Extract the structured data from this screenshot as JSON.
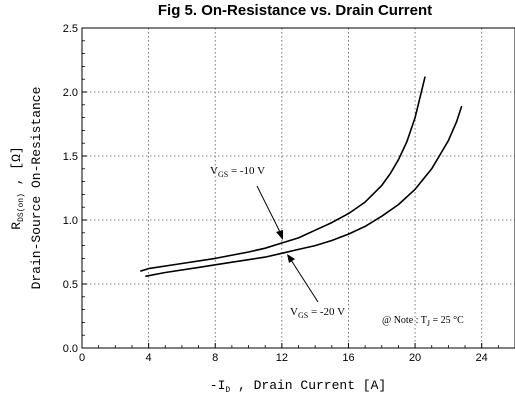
{
  "chart_data": {
    "type": "line",
    "title": "Fig 5. On-Resistance vs. Drain Current",
    "xlabel": {
      "prefix": "-I",
      "sub": "D",
      "rest": " , Drain Current  [A]"
    },
    "ylabel": {
      "line1_prefix": "R",
      "line1_sub": "DS(on)",
      "line1_rest": " ,  [Ω]",
      "line2": "Drain-Source On-Resistance"
    },
    "xlim": [
      0,
      26
    ],
    "ylim": [
      0,
      2.5
    ],
    "x_ticks": [
      "0",
      "4",
      "8",
      "12",
      "16",
      "20",
      "24"
    ],
    "y_ticks": [
      "0.0",
      "0.5",
      "1.0",
      "1.5",
      "2.0",
      "2.5"
    ],
    "grid": true,
    "series": [
      {
        "name": "VGS = -10 V",
        "x": [
          3.5,
          4,
          6,
          8,
          10,
          11,
          12,
          13,
          14,
          15,
          16,
          17,
          18,
          18.5,
          19,
          19.5,
          20,
          20.3,
          20.6
        ],
        "y": [
          0.6,
          0.62,
          0.66,
          0.7,
          0.75,
          0.78,
          0.82,
          0.86,
          0.92,
          0.98,
          1.05,
          1.14,
          1.27,
          1.36,
          1.47,
          1.61,
          1.8,
          1.96,
          2.12
        ]
      },
      {
        "name": "VGS = -20 V",
        "x": [
          3.8,
          5,
          7,
          9,
          11,
          12,
          13,
          14,
          15,
          16,
          17,
          18,
          19,
          20,
          21,
          22,
          22.5,
          22.8
        ],
        "y": [
          0.56,
          0.59,
          0.63,
          0.67,
          0.71,
          0.74,
          0.77,
          0.8,
          0.84,
          0.89,
          0.95,
          1.03,
          1.12,
          1.24,
          1.4,
          1.62,
          1.77,
          1.89
        ]
      }
    ],
    "annotations": {
      "vgs10": {
        "prefix": "V",
        "sub": "GS",
        "rest": " = -10 V"
      },
      "vgs20": {
        "prefix": "V",
        "sub": "GS",
        "rest": " = -20 V"
      },
      "note": {
        "prefix": "@ Note : T",
        "sub": "J",
        "rest": " = 25 °C"
      }
    }
  }
}
